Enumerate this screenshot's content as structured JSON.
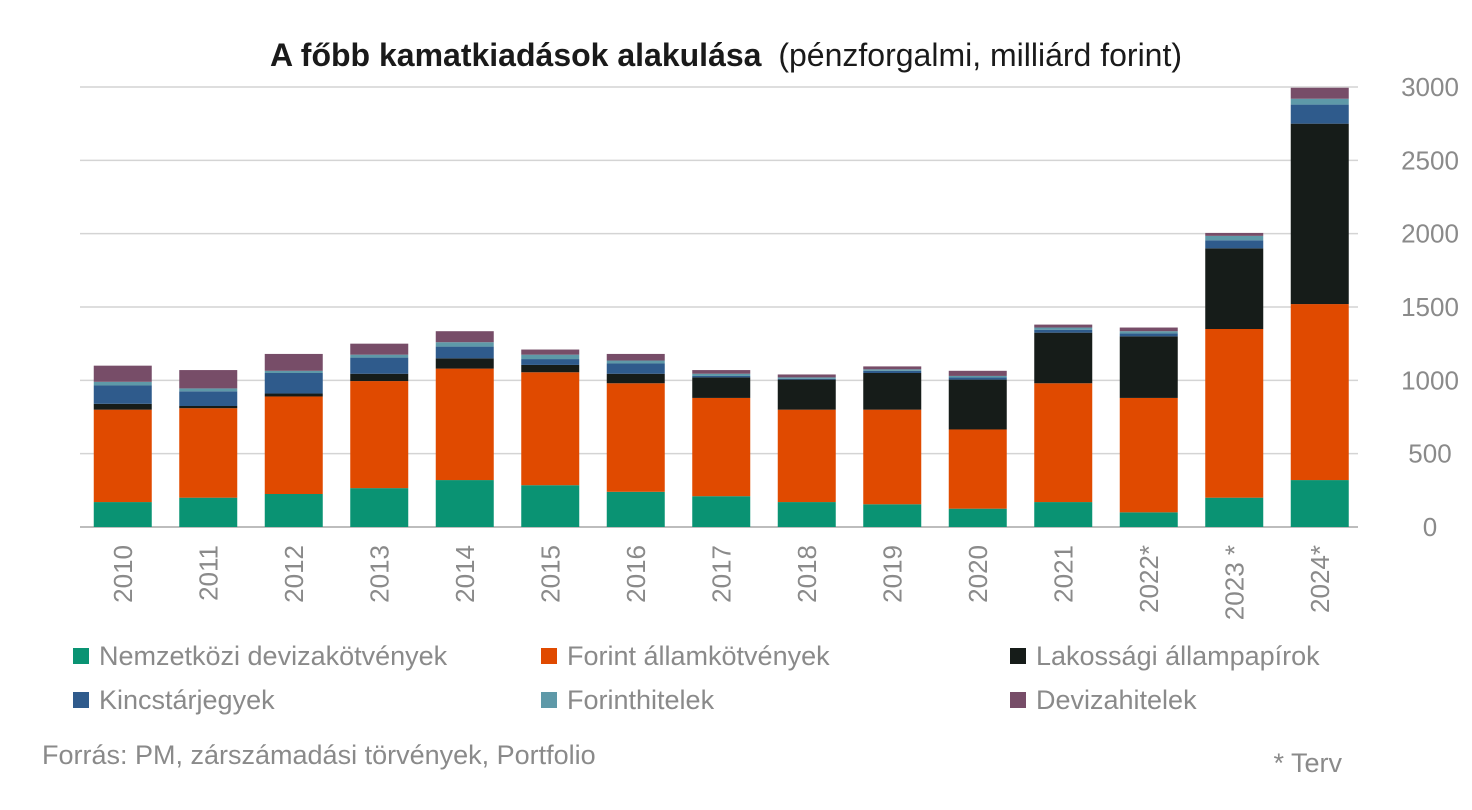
{
  "chart_data": {
    "type": "bar",
    "stacked": true,
    "title": "A főbb kamatkiadások alakulása",
    "subtitle": "(pénzforgalmi, milliárd forint)",
    "categories": [
      "2010",
      "2011",
      "2012",
      "2013",
      "2014",
      "2015",
      "2016",
      "2017",
      "2018",
      "2019",
      "2020",
      "2021",
      "2022*",
      "2023 *",
      "2024*"
    ],
    "ylim": [
      0,
      3000
    ],
    "yticks": [
      0,
      500,
      1000,
      1500,
      2000,
      2500,
      3000
    ],
    "y_axis_position": "right",
    "grid": true,
    "legend_position": "bottom",
    "series": [
      {
        "name": "Nemzetközi devizakötvények",
        "color": "#0a9373",
        "values": [
          170,
          200,
          225,
          265,
          320,
          285,
          240,
          210,
          170,
          155,
          125,
          170,
          100,
          200,
          320
        ]
      },
      {
        "name": "Forint államkötvények",
        "color": "#e04a00",
        "values": [
          630,
          610,
          665,
          730,
          760,
          770,
          740,
          670,
          630,
          645,
          540,
          810,
          780,
          1150,
          1200
        ]
      },
      {
        "name": "Lakossági állampapírok",
        "color": "#161c19",
        "values": [
          40,
          15,
          20,
          50,
          70,
          50,
          65,
          140,
          205,
          250,
          340,
          345,
          420,
          550,
          1230
        ]
      },
      {
        "name": "Kincstárjegyek",
        "color": "#2f5b8c",
        "values": [
          125,
          100,
          140,
          110,
          80,
          40,
          70,
          10,
          5,
          15,
          15,
          20,
          20,
          55,
          130
        ]
      },
      {
        "name": "Forinthitelek",
        "color": "#5e99a8",
        "values": [
          25,
          20,
          15,
          20,
          30,
          30,
          20,
          15,
          10,
          10,
          10,
          15,
          15,
          30,
          40
        ]
      },
      {
        "name": "Devizahitelek",
        "color": "#774d68",
        "values": [
          110,
          125,
          115,
          75,
          75,
          35,
          45,
          25,
          20,
          20,
          35,
          20,
          25,
          20,
          75
        ]
      }
    ]
  },
  "footer": {
    "source": "Forrás: PM, zárszámadási törvények, Portfolio",
    "note": "* Terv"
  }
}
